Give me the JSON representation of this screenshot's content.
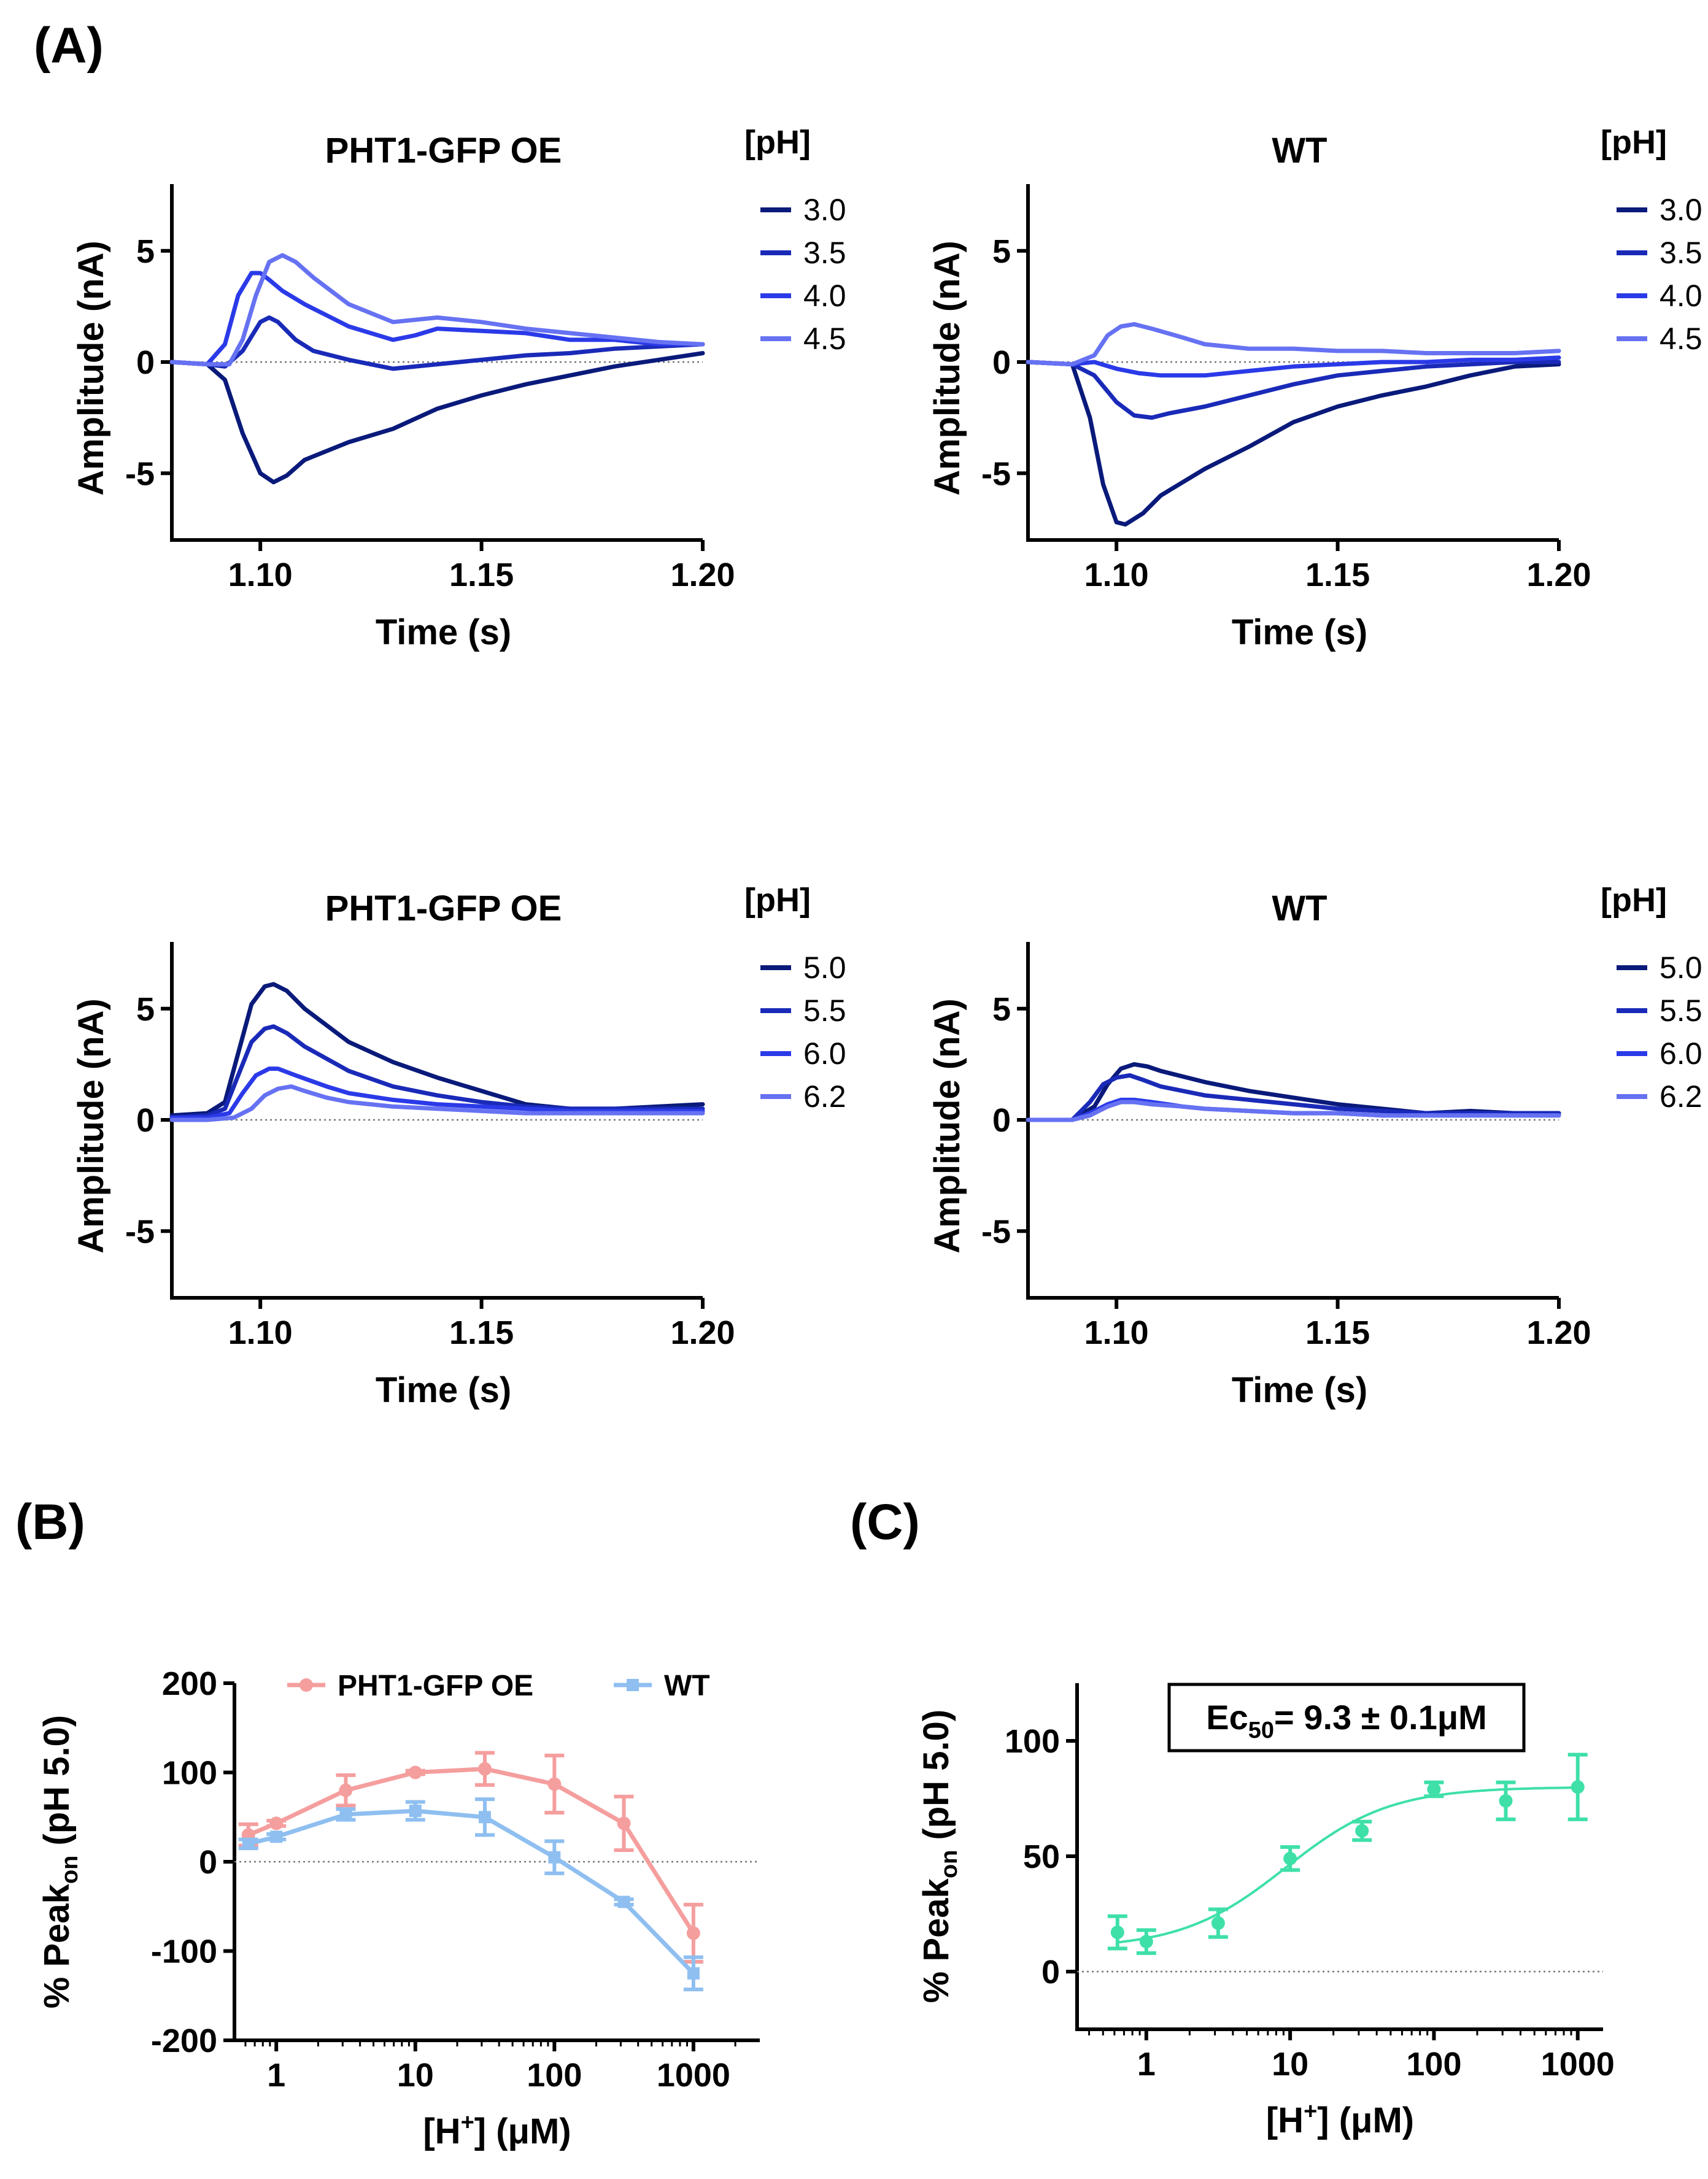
{
  "panel_labels": {
    "A": "(A)",
    "B": "(B)",
    "C": "(C)"
  },
  "colors": {
    "ph_30": "#0a1a7a",
    "ph_35": "#1a2ab8",
    "ph_40": "#2b3ae8",
    "ph_45": "#6672f2",
    "oe": "#f59e9e",
    "wt": "#8fbff0",
    "fit": "#3ee0a8"
  },
  "chart_data": [
    {
      "id": "a1",
      "type": "line",
      "title": "PHT1-GFP OE",
      "xlabel": "Time (s)",
      "ylabel": "Amplitude (nA)",
      "xlim": [
        1.08,
        1.2
      ],
      "ylim": [
        -8,
        8
      ],
      "xticks": [
        {
          "v": 1.1,
          "label": "1.10"
        },
        {
          "v": 1.15,
          "label": "1.15"
        },
        {
          "v": 1.2,
          "label": "1.20"
        }
      ],
      "yticks": [
        {
          "v": 5,
          "label": "5"
        },
        {
          "v": 0,
          "label": "0"
        },
        {
          "v": -5,
          "label": "-5"
        }
      ],
      "legend_title": "[pH]",
      "series": [
        {
          "name": "3.0",
          "color": "#0a1a7a",
          "x": [
            1.08,
            1.088,
            1.092,
            1.096,
            1.1,
            1.103,
            1.106,
            1.11,
            1.12,
            1.13,
            1.14,
            1.15,
            1.16,
            1.17,
            1.18,
            1.19,
            1.2
          ],
          "y": [
            0,
            -0.1,
            -0.8,
            -3.2,
            -5.0,
            -5.4,
            -5.1,
            -4.4,
            -3.6,
            -3.0,
            -2.1,
            -1.5,
            -1.0,
            -0.6,
            -0.2,
            0.1,
            0.4
          ]
        },
        {
          "name": "3.5",
          "color": "#1a2ab8",
          "x": [
            1.08,
            1.088,
            1.092,
            1.096,
            1.1,
            1.102,
            1.104,
            1.108,
            1.112,
            1.12,
            1.13,
            1.14,
            1.15,
            1.16,
            1.17,
            1.18,
            1.19,
            1.2
          ],
          "y": [
            0,
            -0.1,
            -0.2,
            0.5,
            1.8,
            2.0,
            1.8,
            1.0,
            0.5,
            0.1,
            -0.3,
            -0.1,
            0.1,
            0.3,
            0.4,
            0.6,
            0.7,
            0.8
          ]
        },
        {
          "name": "4.0",
          "color": "#2b3ae8",
          "x": [
            1.08,
            1.088,
            1.092,
            1.095,
            1.098,
            1.1,
            1.102,
            1.105,
            1.11,
            1.12,
            1.13,
            1.135,
            1.14,
            1.15,
            1.16,
            1.17,
            1.18,
            1.19,
            1.2
          ],
          "y": [
            0,
            -0.1,
            0.8,
            3.0,
            4.0,
            4.0,
            3.7,
            3.2,
            2.6,
            1.6,
            1.0,
            1.2,
            1.5,
            1.4,
            1.3,
            1.0,
            1.0,
            0.8,
            0.8
          ]
        },
        {
          "name": "4.5",
          "color": "#6672f2",
          "x": [
            1.08,
            1.088,
            1.093,
            1.096,
            1.099,
            1.102,
            1.105,
            1.108,
            1.112,
            1.12,
            1.13,
            1.14,
            1.15,
            1.16,
            1.17,
            1.18,
            1.19,
            1.2
          ],
          "y": [
            0,
            -0.1,
            -0.1,
            1.0,
            3.0,
            4.5,
            4.8,
            4.5,
            3.8,
            2.6,
            1.8,
            2.0,
            1.8,
            1.5,
            1.3,
            1.1,
            0.9,
            0.8
          ]
        }
      ]
    },
    {
      "id": "a2",
      "type": "line",
      "title": "WT",
      "xlabel": "Time (s)",
      "ylabel": "Amplitude (nA)",
      "xlim": [
        1.08,
        1.2
      ],
      "ylim": [
        -8,
        8
      ],
      "xticks": [
        {
          "v": 1.1,
          "label": "1.10"
        },
        {
          "v": 1.15,
          "label": "1.15"
        },
        {
          "v": 1.2,
          "label": "1.20"
        }
      ],
      "yticks": [
        {
          "v": 5,
          "label": "5"
        },
        {
          "v": 0,
          "label": "0"
        },
        {
          "v": -5,
          "label": "-5"
        }
      ],
      "legend_title": "[pH]",
      "series": [
        {
          "name": "3.0",
          "color": "#0a1a7a",
          "x": [
            1.08,
            1.09,
            1.094,
            1.097,
            1.1,
            1.102,
            1.106,
            1.11,
            1.12,
            1.13,
            1.14,
            1.15,
            1.16,
            1.17,
            1.18,
            1.19,
            1.2
          ],
          "y": [
            0,
            -0.1,
            -2.5,
            -5.5,
            -7.2,
            -7.3,
            -6.8,
            -6.0,
            -4.8,
            -3.8,
            -2.7,
            -2.0,
            -1.5,
            -1.1,
            -0.6,
            -0.2,
            -0.1
          ]
        },
        {
          "name": "3.5",
          "color": "#1a2ab8",
          "x": [
            1.08,
            1.09,
            1.095,
            1.1,
            1.104,
            1.108,
            1.112,
            1.12,
            1.13,
            1.14,
            1.15,
            1.16,
            1.17,
            1.18,
            1.19,
            1.2
          ],
          "y": [
            0,
            -0.1,
            -0.6,
            -1.8,
            -2.4,
            -2.5,
            -2.3,
            -2.0,
            -1.5,
            -1.0,
            -0.6,
            -0.4,
            -0.2,
            -0.1,
            0.0,
            0.0
          ]
        },
        {
          "name": "4.0",
          "color": "#2b3ae8",
          "x": [
            1.08,
            1.09,
            1.095,
            1.1,
            1.105,
            1.11,
            1.12,
            1.13,
            1.14,
            1.15,
            1.16,
            1.17,
            1.18,
            1.19,
            1.2
          ],
          "y": [
            0,
            -0.1,
            0.0,
            -0.3,
            -0.5,
            -0.6,
            -0.6,
            -0.4,
            -0.2,
            -0.1,
            0.0,
            0.0,
            0.1,
            0.1,
            0.2
          ]
        },
        {
          "name": "4.5",
          "color": "#6672f2",
          "x": [
            1.08,
            1.09,
            1.095,
            1.098,
            1.101,
            1.104,
            1.108,
            1.115,
            1.12,
            1.13,
            1.14,
            1.15,
            1.16,
            1.17,
            1.18,
            1.19,
            1.2
          ],
          "y": [
            0,
            -0.1,
            0.3,
            1.2,
            1.6,
            1.7,
            1.5,
            1.1,
            0.8,
            0.6,
            0.6,
            0.5,
            0.5,
            0.4,
            0.4,
            0.4,
            0.5
          ]
        }
      ]
    },
    {
      "id": "a3",
      "type": "line",
      "title": "PHT1-GFP OE",
      "xlabel": "Time (s)",
      "ylabel": "Amplitude (nA)",
      "xlim": [
        1.08,
        1.2
      ],
      "ylim": [
        -8,
        8
      ],
      "xticks": [
        {
          "v": 1.1,
          "label": "1.10"
        },
        {
          "v": 1.15,
          "label": "1.15"
        },
        {
          "v": 1.2,
          "label": "1.20"
        }
      ],
      "yticks": [
        {
          "v": 5,
          "label": "5"
        },
        {
          "v": 0,
          "label": "0"
        },
        {
          "v": -5,
          "label": "-5"
        }
      ],
      "legend_title": "[pH]",
      "series": [
        {
          "name": "5.0",
          "color": "#0a1a7a",
          "x": [
            1.08,
            1.088,
            1.092,
            1.095,
            1.098,
            1.101,
            1.103,
            1.106,
            1.11,
            1.12,
            1.13,
            1.14,
            1.15,
            1.16,
            1.17,
            1.18,
            1.19,
            1.2
          ],
          "y": [
            0.2,
            0.3,
            0.8,
            3.0,
            5.2,
            6.0,
            6.1,
            5.8,
            5.0,
            3.5,
            2.6,
            1.9,
            1.3,
            0.7,
            0.5,
            0.5,
            0.6,
            0.7
          ]
        },
        {
          "name": "5.5",
          "color": "#1a2ab8",
          "x": [
            1.08,
            1.088,
            1.092,
            1.095,
            1.098,
            1.101,
            1.103,
            1.106,
            1.11,
            1.12,
            1.13,
            1.14,
            1.15,
            1.16,
            1.17,
            1.18,
            1.19,
            1.2
          ],
          "y": [
            0.1,
            0.2,
            0.5,
            2.0,
            3.5,
            4.1,
            4.2,
            3.9,
            3.3,
            2.2,
            1.5,
            1.1,
            0.8,
            0.6,
            0.5,
            0.5,
            0.5,
            0.5
          ]
        },
        {
          "name": "6.0",
          "color": "#2b3ae8",
          "x": [
            1.08,
            1.088,
            1.093,
            1.096,
            1.099,
            1.102,
            1.104,
            1.108,
            1.115,
            1.12,
            1.13,
            1.14,
            1.15,
            1.16,
            1.17,
            1.18,
            1.19,
            1.2
          ],
          "y": [
            0.1,
            0.1,
            0.3,
            1.2,
            2.0,
            2.3,
            2.3,
            2.0,
            1.5,
            1.2,
            0.9,
            0.7,
            0.6,
            0.5,
            0.4,
            0.4,
            0.4,
            0.4
          ]
        },
        {
          "name": "6.2",
          "color": "#6672f2",
          "x": [
            1.08,
            1.088,
            1.094,
            1.098,
            1.101,
            1.104,
            1.107,
            1.11,
            1.115,
            1.12,
            1.13,
            1.14,
            1.15,
            1.16,
            1.17,
            1.18,
            1.19,
            1.2
          ],
          "y": [
            0.0,
            0.0,
            0.1,
            0.5,
            1.1,
            1.4,
            1.5,
            1.3,
            1.0,
            0.8,
            0.6,
            0.5,
            0.4,
            0.3,
            0.3,
            0.3,
            0.3,
            0.3
          ]
        }
      ]
    },
    {
      "id": "a4",
      "type": "line",
      "title": "WT",
      "xlabel": "Time (s)",
      "ylabel": "Amplitude (nA)",
      "xlim": [
        1.08,
        1.2
      ],
      "ylim": [
        -8,
        8
      ],
      "xticks": [
        {
          "v": 1.1,
          "label": "1.10"
        },
        {
          "v": 1.15,
          "label": "1.15"
        },
        {
          "v": 1.2,
          "label": "1.20"
        }
      ],
      "yticks": [
        {
          "v": 5,
          "label": "5"
        },
        {
          "v": 0,
          "label": "0"
        },
        {
          "v": -5,
          "label": "-5"
        }
      ],
      "legend_title": "[pH]",
      "series": [
        {
          "name": "5.0",
          "color": "#0a1a7a",
          "x": [
            1.08,
            1.09,
            1.095,
            1.098,
            1.101,
            1.104,
            1.107,
            1.11,
            1.12,
            1.13,
            1.14,
            1.15,
            1.16,
            1.17,
            1.18,
            1.19,
            1.2
          ],
          "y": [
            0,
            0.0,
            0.6,
            1.6,
            2.3,
            2.5,
            2.4,
            2.2,
            1.7,
            1.3,
            1.0,
            0.7,
            0.5,
            0.3,
            0.4,
            0.3,
            0.3
          ]
        },
        {
          "name": "5.5",
          "color": "#1a2ab8",
          "x": [
            1.08,
            1.09,
            1.094,
            1.097,
            1.1,
            1.103,
            1.106,
            1.11,
            1.12,
            1.13,
            1.14,
            1.15,
            1.16,
            1.17,
            1.18,
            1.19,
            1.2
          ],
          "y": [
            0,
            0.0,
            0.8,
            1.6,
            1.9,
            2.0,
            1.8,
            1.5,
            1.1,
            0.9,
            0.7,
            0.5,
            0.4,
            0.3,
            0.3,
            0.3,
            0.3
          ]
        },
        {
          "name": "6.0",
          "color": "#2b3ae8",
          "x": [
            1.08,
            1.09,
            1.094,
            1.098,
            1.101,
            1.104,
            1.108,
            1.115,
            1.12,
            1.13,
            1.14,
            1.15,
            1.16,
            1.17,
            1.18,
            1.19,
            1.2
          ],
          "y": [
            0,
            0.0,
            0.3,
            0.7,
            0.9,
            0.9,
            0.8,
            0.6,
            0.5,
            0.4,
            0.3,
            0.3,
            0.2,
            0.2,
            0.2,
            0.2,
            0.2
          ]
        },
        {
          "name": "6.2",
          "color": "#6672f2",
          "x": [
            1.08,
            1.09,
            1.094,
            1.098,
            1.101,
            1.104,
            1.108,
            1.115,
            1.12,
            1.13,
            1.14,
            1.15,
            1.16,
            1.17,
            1.18,
            1.19,
            1.2
          ],
          "y": [
            0,
            0.0,
            0.2,
            0.6,
            0.8,
            0.8,
            0.7,
            0.6,
            0.5,
            0.4,
            0.3,
            0.3,
            0.2,
            0.2,
            0.2,
            0.2,
            0.2
          ]
        }
      ]
    },
    {
      "id": "b",
      "type": "line",
      "xlabel_prefix": "[H",
      "xlabel_sup": "+",
      "xlabel_suffix": "] (μM)",
      "ylabel_prefix": "% Peak",
      "ylabel_sub": "on",
      "ylabel_suffix": " (pH 5.0)",
      "xscale": "log",
      "xlim": [
        0.5,
        3000
      ],
      "ylim": [
        -200,
        200
      ],
      "xticks": [
        {
          "v": 1,
          "label": "1"
        },
        {
          "v": 10,
          "label": "10"
        },
        {
          "v": 100,
          "label": "100"
        },
        {
          "v": 1000,
          "label": "1000"
        }
      ],
      "yticks": [
        {
          "v": 200,
          "label": "200"
        },
        {
          "v": 100,
          "label": "100"
        },
        {
          "v": 0,
          "label": "0"
        },
        {
          "v": -100,
          "label": "-100"
        },
        {
          "v": -200,
          "label": "-200"
        }
      ],
      "legend_placement": "top",
      "series": [
        {
          "name": "PHT1-GFP OE",
          "color": "#f59e9e",
          "marker": "circle",
          "x": [
            0.63,
            1,
            3.16,
            10,
            31.6,
            100,
            316,
            1000
          ],
          "y": [
            30,
            43,
            80,
            100,
            104,
            87,
            43,
            -80
          ],
          "err": [
            12,
            3,
            17,
            2,
            18,
            32,
            30,
            32
          ]
        },
        {
          "name": "WT",
          "color": "#8fbff0",
          "marker": "square",
          "x": [
            0.63,
            1,
            3.16,
            10,
            31.6,
            100,
            316,
            1000
          ],
          "y": [
            20,
            28,
            53,
            57,
            50,
            5,
            -45,
            -125
          ],
          "err": [
            5,
            3,
            6,
            10,
            20,
            18,
            3,
            18
          ]
        }
      ]
    },
    {
      "id": "c",
      "type": "scatter",
      "xlabel_prefix": "[H",
      "xlabel_sup": "+",
      "xlabel_suffix": "] (μM)",
      "ylabel_prefix": "% Peak",
      "ylabel_sub": "on",
      "ylabel_suffix": " (pH 5.0)",
      "xscale": "log",
      "xlim": [
        0.33,
        1500
      ],
      "ylim": [
        -25,
        125
      ],
      "xticks": [
        {
          "v": 1,
          "label": "1"
        },
        {
          "v": 10,
          "label": "10"
        },
        {
          "v": 100,
          "label": "100"
        },
        {
          "v": 1000,
          "label": "1000"
        }
      ],
      "yticks": [
        {
          "v": 100,
          "label": "100"
        },
        {
          "v": 50,
          "label": "50"
        },
        {
          "v": 0,
          "label": "0"
        }
      ],
      "annotation_prefix": "Ec",
      "annotation_sub": "50",
      "annotation_suffix": "= 9.3 ± 0.1μM",
      "fit": {
        "bottom": 10,
        "top": 80,
        "ec50": 9.3,
        "hill": 1.2
      },
      "series": [
        {
          "color": "#3ee0a8",
          "marker": "circle",
          "x": [
            0.63,
            1,
            3.16,
            10,
            31.6,
            100,
            316,
            1000
          ],
          "y": [
            17,
            13,
            21,
            49,
            61,
            79,
            74,
            80
          ],
          "err": [
            7,
            5,
            6,
            5,
            4,
            3,
            8,
            14
          ]
        }
      ]
    }
  ]
}
